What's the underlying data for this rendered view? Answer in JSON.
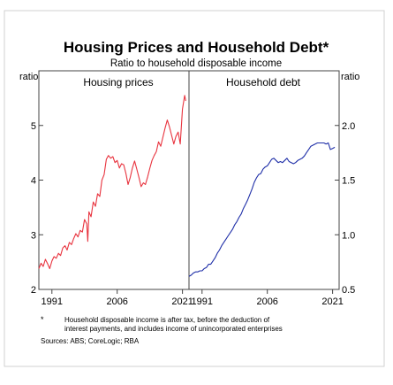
{
  "chart_data": {
    "type": "line",
    "title": "Housing Prices and Household Debt*",
    "subtitle": "Ratio to household disposable income",
    "footnote_marker": "*",
    "footnote": [
      "Household disposable income is after tax, before the deduction of",
      "interest payments, and includes income of unincorporated enterprises"
    ],
    "sources": "Sources: ABS; CoreLogic; RBA",
    "colors": {
      "housing": "#e8333e",
      "debt": "#1f2fa8"
    },
    "panels": [
      {
        "title": "Housing prices",
        "axis_unit": "ratio",
        "axis_side": "left",
        "ylim": [
          2,
          6
        ],
        "yticks": [
          2,
          3,
          4,
          5
        ],
        "xlim": [
          1988,
          2022.5
        ],
        "xticks": [
          1991,
          2006,
          2021
        ],
        "series": [
          {
            "color": "#e8333e",
            "points": [
              [
                1988.0,
                2.38
              ],
              [
                1988.5,
                2.48
              ],
              [
                1989.0,
                2.42
              ],
              [
                1989.5,
                2.55
              ],
              [
                1990.0,
                2.47
              ],
              [
                1990.5,
                2.38
              ],
              [
                1991.0,
                2.52
              ],
              [
                1991.5,
                2.6
              ],
              [
                1992.0,
                2.57
              ],
              [
                1992.5,
                2.66
              ],
              [
                1993.0,
                2.62
              ],
              [
                1993.5,
                2.76
              ],
              [
                1994.0,
                2.8
              ],
              [
                1994.5,
                2.72
              ],
              [
                1995.0,
                2.86
              ],
              [
                1995.5,
                2.82
              ],
              [
                1996.0,
                2.93
              ],
              [
                1996.5,
                3.02
              ],
              [
                1997.0,
                2.96
              ],
              [
                1997.5,
                3.08
              ],
              [
                1998.0,
                3.05
              ],
              [
                1998.5,
                3.28
              ],
              [
                1999.0,
                3.2
              ],
              [
                1999.25,
                2.88
              ],
              [
                1999.5,
                3.42
              ],
              [
                2000.0,
                3.33
              ],
              [
                2000.5,
                3.6
              ],
              [
                2001.0,
                3.52
              ],
              [
                2001.5,
                3.75
              ],
              [
                2002.0,
                3.7
              ],
              [
                2002.5,
                4.0
              ],
              [
                2003.0,
                4.1
              ],
              [
                2003.5,
                4.38
              ],
              [
                2004.0,
                4.45
              ],
              [
                2004.5,
                4.4
              ],
              [
                2005.0,
                4.43
              ],
              [
                2005.5,
                4.32
              ],
              [
                2006.0,
                4.36
              ],
              [
                2006.5,
                4.22
              ],
              [
                2007.0,
                4.3
              ],
              [
                2007.5,
                4.28
              ],
              [
                2008.0,
                4.12
              ],
              [
                2008.5,
                3.92
              ],
              [
                2009.0,
                4.05
              ],
              [
                2009.5,
                4.22
              ],
              [
                2010.0,
                4.35
              ],
              [
                2010.5,
                4.2
              ],
              [
                2011.0,
                4.05
              ],
              [
                2011.5,
                3.88
              ],
              [
                2012.0,
                3.95
              ],
              [
                2012.5,
                3.92
              ],
              [
                2013.0,
                4.06
              ],
              [
                2013.5,
                4.22
              ],
              [
                2014.0,
                4.36
              ],
              [
                2014.5,
                4.45
              ],
              [
                2015.0,
                4.52
              ],
              [
                2015.5,
                4.7
              ],
              [
                2016.0,
                4.62
              ],
              [
                2016.5,
                4.78
              ],
              [
                2017.0,
                4.95
              ],
              [
                2017.5,
                5.1
              ],
              [
                2018.0,
                4.98
              ],
              [
                2018.5,
                4.82
              ],
              [
                2019.0,
                4.66
              ],
              [
                2019.5,
                4.8
              ],
              [
                2020.0,
                4.88
              ],
              [
                2020.5,
                4.66
              ],
              [
                2021.0,
                5.3
              ],
              [
                2021.5,
                5.55
              ],
              [
                2021.75,
                5.45
              ]
            ]
          }
        ]
      },
      {
        "title": "Household debt",
        "axis_unit": "ratio",
        "axis_side": "right",
        "ylim": [
          0.5,
          2.5
        ],
        "yticks": [
          0.5,
          1.0,
          1.5,
          2.0
        ],
        "yticklabels": [
          "0.5",
          "1.0",
          "1.5",
          "2.0"
        ],
        "xlim": [
          1988,
          2022.5
        ],
        "xticks": [
          1991,
          2006,
          2021
        ],
        "series": [
          {
            "color": "#1f2fa8",
            "points": [
              [
                1988.0,
                0.62
              ],
              [
                1988.5,
                0.63
              ],
              [
                1989.0,
                0.65
              ],
              [
                1989.5,
                0.66
              ],
              [
                1990.0,
                0.66
              ],
              [
                1990.5,
                0.67
              ],
              [
                1991.0,
                0.67
              ],
              [
                1991.5,
                0.69
              ],
              [
                1992.0,
                0.7
              ],
              [
                1992.5,
                0.73
              ],
              [
                1993.0,
                0.73
              ],
              [
                1993.5,
                0.76
              ],
              [
                1994.0,
                0.79
              ],
              [
                1994.5,
                0.83
              ],
              [
                1995.0,
                0.86
              ],
              [
                1995.5,
                0.9
              ],
              [
                1996.0,
                0.93
              ],
              [
                1996.5,
                0.96
              ],
              [
                1997.0,
                0.99
              ],
              [
                1997.5,
                1.02
              ],
              [
                1998.0,
                1.05
              ],
              [
                1998.5,
                1.09
              ],
              [
                1999.0,
                1.12
              ],
              [
                1999.5,
                1.16
              ],
              [
                2000.0,
                1.19
              ],
              [
                2000.5,
                1.24
              ],
              [
                2001.0,
                1.28
              ],
              [
                2001.5,
                1.32
              ],
              [
                2002.0,
                1.37
              ],
              [
                2002.5,
                1.42
              ],
              [
                2003.0,
                1.48
              ],
              [
                2003.5,
                1.52
              ],
              [
                2004.0,
                1.55
              ],
              [
                2004.5,
                1.56
              ],
              [
                2005.0,
                1.6
              ],
              [
                2005.5,
                1.62
              ],
              [
                2006.0,
                1.63
              ],
              [
                2006.5,
                1.66
              ],
              [
                2007.0,
                1.69
              ],
              [
                2007.5,
                1.7
              ],
              [
                2008.0,
                1.68
              ],
              [
                2008.5,
                1.66
              ],
              [
                2009.0,
                1.67
              ],
              [
                2009.5,
                1.66
              ],
              [
                2010.0,
                1.68
              ],
              [
                2010.5,
                1.7
              ],
              [
                2011.0,
                1.67
              ],
              [
                2011.5,
                1.66
              ],
              [
                2012.0,
                1.65
              ],
              [
                2012.5,
                1.66
              ],
              [
                2013.0,
                1.68
              ],
              [
                2013.5,
                1.69
              ],
              [
                2014.0,
                1.7
              ],
              [
                2014.5,
                1.72
              ],
              [
                2015.0,
                1.75
              ],
              [
                2015.5,
                1.78
              ],
              [
                2016.0,
                1.81
              ],
              [
                2016.5,
                1.82
              ],
              [
                2017.0,
                1.83
              ],
              [
                2017.5,
                1.84
              ],
              [
                2018.0,
                1.84
              ],
              [
                2018.5,
                1.84
              ],
              [
                2019.0,
                1.84
              ],
              [
                2019.5,
                1.83
              ],
              [
                2020.0,
                1.84
              ],
              [
                2020.5,
                1.78
              ],
              [
                2021.0,
                1.79
              ],
              [
                2021.5,
                1.8
              ]
            ]
          }
        ]
      }
    ]
  }
}
